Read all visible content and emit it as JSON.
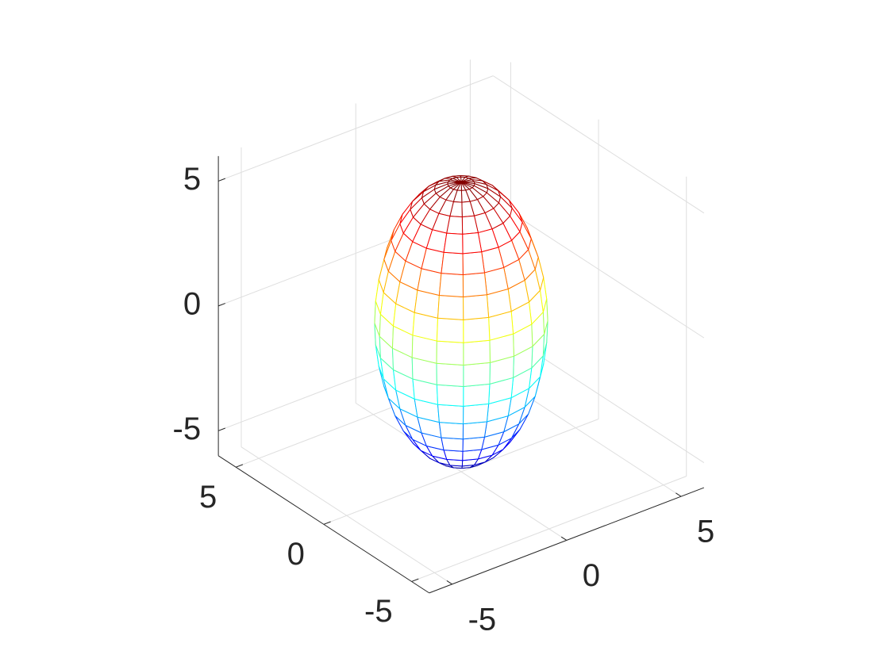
{
  "chart_data": {
    "type": "mesh",
    "surface": {
      "shape": "ellipsoid",
      "center": [
        0,
        0,
        0
      ],
      "radii": [
        3,
        3,
        5.6
      ],
      "n": 20,
      "colormap": "jet"
    },
    "view": [
      -37.5,
      30
    ],
    "xlim": [
      -6,
      6
    ],
    "ylim": [
      -6,
      6
    ],
    "zlim": [
      -6,
      6
    ],
    "xticks": [
      -5,
      0,
      5
    ],
    "yticks": [
      -5,
      0,
      5
    ],
    "zticks": [
      -5,
      0,
      5
    ],
    "grid": true
  }
}
